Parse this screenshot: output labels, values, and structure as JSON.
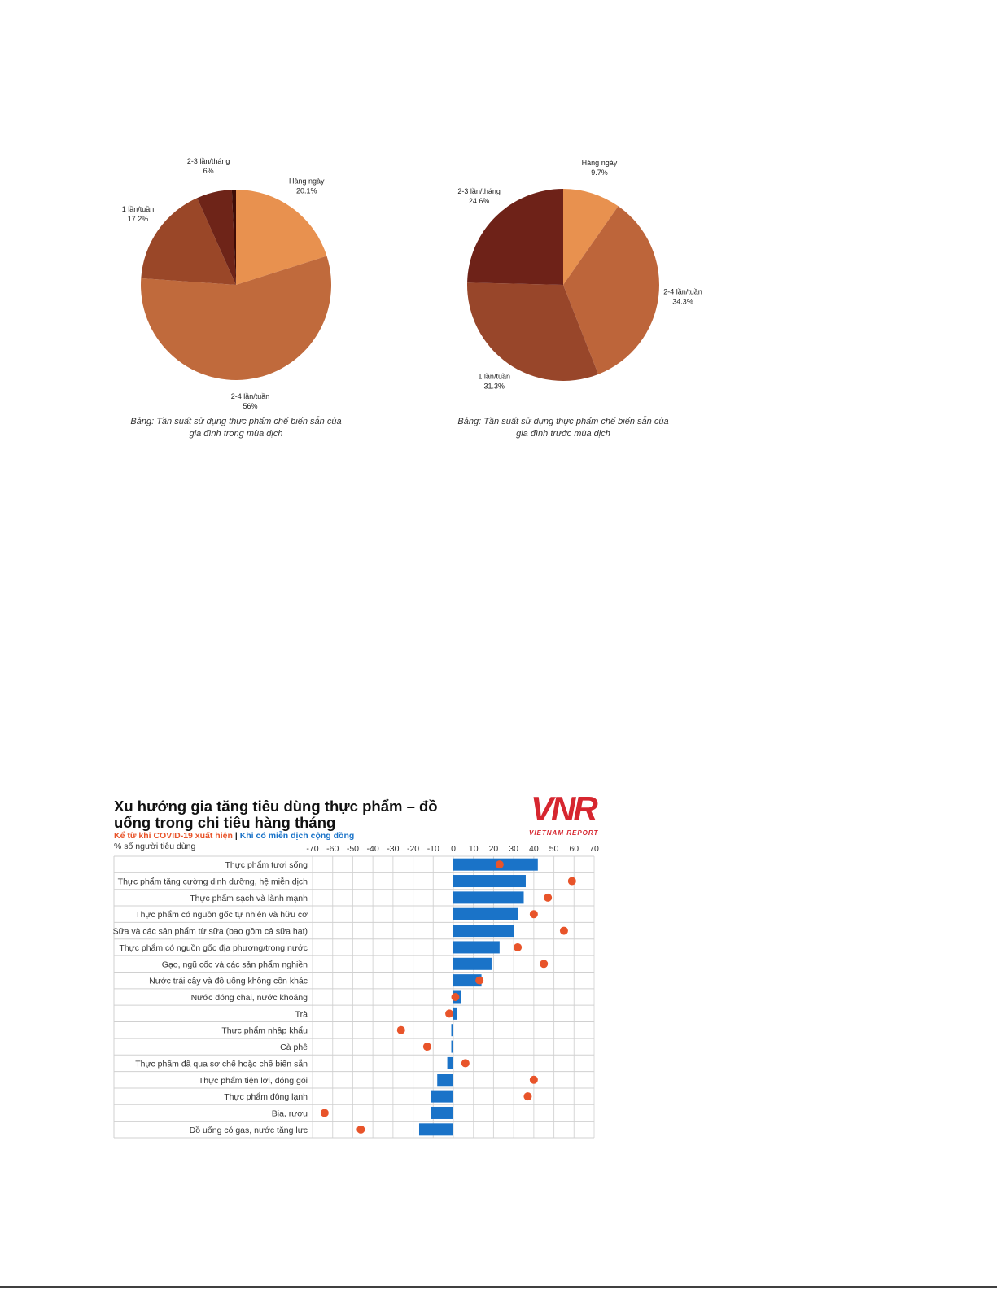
{
  "chart_data": [
    {
      "type": "pie",
      "categories": [
        "Hàng ngày",
        "2-4 lần/tuần",
        "1 lần/tuần",
        "2-3 lần/tháng",
        null
      ],
      "values": [
        20.1,
        56,
        17.2,
        6,
        0.7
      ],
      "value_labels": [
        "20.1%",
        "56%",
        "17.2%",
        "6%",
        null
      ],
      "colors": [
        "#e8914f",
        "#c06a3c",
        "#9a4728",
        "#6e2418",
        "#3f0c06"
      ],
      "caption": "Bảng: Tần suất sử dụng thực phẩm chế biến sẵn của gia đình trong mùa dịch"
    },
    {
      "type": "pie",
      "categories": [
        "Hàng ngày",
        "2-4 lần/tuần",
        "1 lần/tuần",
        "2-3 lần/tháng"
      ],
      "values": [
        9.7,
        34.3,
        31.3,
        24.6
      ],
      "value_labels": [
        "9.7%",
        "34.3%",
        "31.3%",
        "24.6%"
      ],
      "colors": [
        "#e8914f",
        "#bd653a",
        "#98462a",
        "#6e2218"
      ],
      "caption": "Bảng: Tần suất sử dụng thực phẩm chế biến sẵn của gia đình trước mùa dịch"
    },
    {
      "type": "bar",
      "orientation": "horizontal",
      "title": "Xu hướng gia tăng tiêu dùng thực phẩm – đồ uống trong chi tiêu hàng tháng",
      "legend_separator": "|",
      "unit_label": "% số người tiêu dùng",
      "logo": "VNR",
      "logo_subtitle": "VIETNAM REPORT",
      "categories": [
        "Thực phẩm tươi sống",
        "Thực phẩm tăng cường dinh dưỡng, hệ miễn dịch",
        "Thực phẩm sạch và lành mạnh",
        "Thực phẩm có nguồn gốc tự nhiên và hữu cơ",
        "Sữa và các sản phẩm từ sữa (bao gồm cả sữa hạt)",
        "Thực phẩm có nguồn gốc địa phương/trong nước",
        "Gạo, ngũ cốc và các sản phẩm nghiền",
        "Nước trái cây và đồ uống không cồn khác",
        "Nước đóng chai, nước khoáng",
        "Trà",
        "Thực phẩm nhập khẩu",
        "Cà phê",
        "Thực phẩm đã qua sơ chế hoặc chế biến sẵn",
        "Thực phẩm tiện lợi, đóng gói",
        "Thực phẩm đông lạnh",
        "Bia, rượu",
        "Đồ uống có gas, nước tăng lực"
      ],
      "series": [
        {
          "name": "Kể từ khi COVID-19 xuất hiện",
          "mark": "dot",
          "color": "#e8542a",
          "values": [
            23,
            59,
            47,
            40,
            55,
            32,
            45,
            13,
            1,
            -2,
            -26,
            -13,
            6,
            40,
            37,
            -64,
            -46
          ]
        },
        {
          "name": "Khi có miễn dịch cộng đồng",
          "mark": "bar",
          "color": "#1a73c8",
          "values": [
            42,
            36,
            35,
            32,
            30,
            23,
            19,
            14,
            4,
            2,
            -1,
            -1,
            -3,
            -8,
            -11,
            -11,
            -17
          ]
        }
      ],
      "xlim": [
        -70,
        70
      ],
      "xticks": [
        -70,
        -60,
        -50,
        -40,
        -30,
        -20,
        -10,
        0,
        10,
        20,
        30,
        40,
        50,
        60,
        70
      ],
      "grid": true
    }
  ]
}
